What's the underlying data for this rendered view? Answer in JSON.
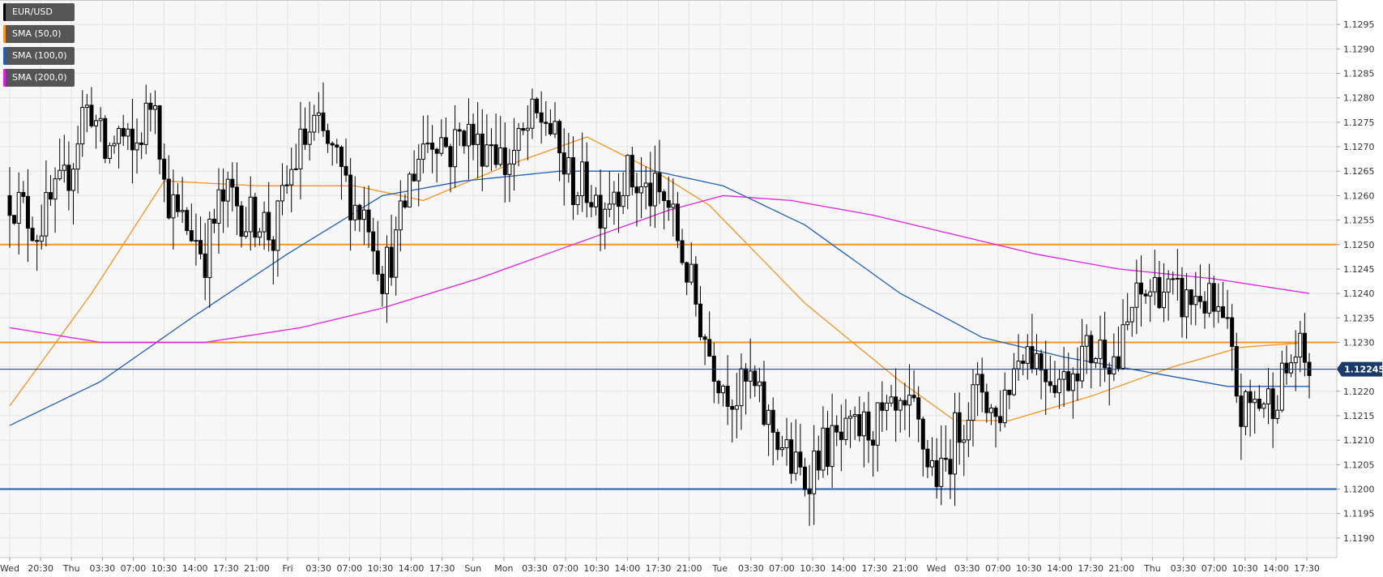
{
  "chart_data": {
    "type": "candlestick",
    "symbol": "EUR/USD",
    "current_price": 1.12245,
    "current_price_label": "1.12245",
    "ylim": [
      1.1186,
      1.13
    ],
    "y_ticks": [
      "1.1190",
      "1.1195",
      "1.1200",
      "1.1205",
      "1.1210",
      "1.1215",
      "1.1220",
      "1.1225",
      "1.1230",
      "1.1235",
      "1.1240",
      "1.1245",
      "1.1250",
      "1.1255",
      "1.1260",
      "1.1265",
      "1.1270",
      "1.1275",
      "1.1280",
      "1.1285",
      "1.1290",
      "1.1295"
    ],
    "x_ticks": [
      "Wed",
      "20:30",
      "Thu",
      "03:30",
      "07:00",
      "10:30",
      "14:00",
      "17:30",
      "21:00",
      "Fri",
      "03:30",
      "07:00",
      "10:30",
      "14:00",
      "17:30",
      "Sun",
      "Mon",
      "03:30",
      "07:00",
      "10:30",
      "14:00",
      "17:30",
      "21:00",
      "Tue",
      "03:30",
      "07:00",
      "10:30",
      "14:00",
      "17:30",
      "21:00",
      "Wed",
      "03:30",
      "07:00",
      "10:30",
      "14:00",
      "17:30",
      "21:00",
      "Thu",
      "03:30",
      "07:00",
      "10:30",
      "14:00",
      "17:30"
    ],
    "grid": true,
    "legend": [
      {
        "label": "EUR/USD",
        "color": "#000000"
      },
      {
        "label": "SMA (50,0)",
        "color": "#f7931e"
      },
      {
        "label": "SMA (100,0)",
        "color": "#1f5fb4"
      },
      {
        "label": "SMA (200,0)",
        "color": "#e020e0"
      }
    ],
    "horizontal_levels": [
      {
        "value": 1.125,
        "color": "#f7931e"
      },
      {
        "value": 1.123,
        "color": "#f7931e"
      },
      {
        "value": 1.12,
        "color": "#1f5fb4"
      }
    ],
    "current_price_line_color": "#1a3a6a",
    "candle_anchors": [
      [
        0,
        1.126
      ],
      [
        3,
        1.1257
      ],
      [
        6,
        1.1253
      ],
      [
        9,
        1.1258
      ],
      [
        12,
        1.1262
      ],
      [
        14,
        1.1268
      ],
      [
        16,
        1.1277
      ],
      [
        18,
        1.1278
      ],
      [
        21,
        1.1268
      ],
      [
        24,
        1.1273
      ],
      [
        27,
        1.1268
      ],
      [
        30,
        1.1276
      ],
      [
        32,
        1.1282
      ],
      [
        34,
        1.1262
      ],
      [
        37,
        1.1255
      ],
      [
        40,
        1.1253
      ],
      [
        43,
        1.1248
      ],
      [
        46,
        1.1258
      ],
      [
        49,
        1.126
      ],
      [
        52,
        1.1255
      ],
      [
        55,
        1.1256
      ],
      [
        58,
        1.1251
      ],
      [
        61,
        1.1262
      ],
      [
        64,
        1.127
      ],
      [
        67,
        1.1274
      ],
      [
        70,
        1.127
      ],
      [
        73,
        1.1264
      ],
      [
        76,
        1.1258
      ],
      [
        79,
        1.1256
      ],
      [
        82,
        1.1244
      ],
      [
        85,
        1.125
      ],
      [
        88,
        1.1263
      ],
      [
        91,
        1.1271
      ],
      [
        94,
        1.1273
      ],
      [
        97,
        1.1269
      ],
      [
        100,
        1.1274
      ],
      [
        103,
        1.127
      ],
      [
        106,
        1.1272
      ],
      [
        109,
        1.1266
      ],
      [
        112,
        1.127
      ],
      [
        115,
        1.1275
      ],
      [
        118,
        1.1276
      ],
      [
        121,
        1.1268
      ],
      [
        124,
        1.1262
      ],
      [
        127,
        1.1262
      ],
      [
        130,
        1.1258
      ],
      [
        133,
        1.1262
      ],
      [
        136,
        1.1264
      ],
      [
        139,
        1.1261
      ],
      [
        142,
        1.126
      ],
      [
        145,
        1.1258
      ],
      [
        148,
        1.1248
      ],
      [
        151,
        1.1238
      ],
      [
        154,
        1.1228
      ],
      [
        157,
        1.1222
      ],
      [
        160,
        1.1219
      ],
      [
        163,
        1.1222
      ],
      [
        166,
        1.1215
      ],
      [
        169,
        1.1211
      ],
      [
        172,
        1.1205
      ],
      [
        175,
        1.1202
      ],
      [
        178,
        1.1208
      ],
      [
        181,
        1.1209
      ],
      [
        184,
        1.121
      ],
      [
        187,
        1.1212
      ],
      [
        190,
        1.1213
      ],
      [
        193,
        1.1214
      ],
      [
        196,
        1.1214
      ],
      [
        199,
        1.1215
      ],
      [
        202,
        1.1206
      ],
      [
        205,
        1.1202
      ],
      [
        208,
        1.1211
      ],
      [
        211,
        1.1217
      ],
      [
        214,
        1.1221
      ],
      [
        217,
        1.1214
      ],
      [
        220,
        1.1222
      ],
      [
        223,
        1.123
      ],
      [
        226,
        1.1227
      ],
      [
        229,
        1.1224
      ],
      [
        232,
        1.1222
      ],
      [
        235,
        1.1227
      ],
      [
        238,
        1.1228
      ],
      [
        241,
        1.1229
      ],
      [
        244,
        1.1226
      ],
      [
        247,
        1.1237
      ],
      [
        250,
        1.124
      ],
      [
        253,
        1.1242
      ],
      [
        256,
        1.1239
      ],
      [
        259,
        1.1238
      ],
      [
        262,
        1.124
      ],
      [
        265,
        1.1236
      ],
      [
        268,
        1.1231
      ],
      [
        271,
        1.1215
      ],
      [
        274,
        1.1218
      ],
      [
        277,
        1.1218
      ],
      [
        280,
        1.1222
      ],
      [
        283,
        1.1228
      ],
      [
        286,
        1.1225
      ]
    ],
    "sma_50": [
      [
        0,
        1.1217
      ],
      [
        18,
        1.124
      ],
      [
        34,
        1.1263
      ],
      [
        55,
        1.1262
      ],
      [
        76,
        1.1262
      ],
      [
        91,
        1.1259
      ],
      [
        109,
        1.1266
      ],
      [
        127,
        1.1272
      ],
      [
        142,
        1.1265
      ],
      [
        154,
        1.1258
      ],
      [
        175,
        1.1238
      ],
      [
        196,
        1.1222
      ],
      [
        208,
        1.1214
      ],
      [
        220,
        1.1214
      ],
      [
        238,
        1.1219
      ],
      [
        256,
        1.1225
      ],
      [
        271,
        1.1229
      ],
      [
        286,
        1.123
      ]
    ],
    "sma_100": [
      [
        0,
        1.1213
      ],
      [
        20,
        1.1222
      ],
      [
        40,
        1.1235
      ],
      [
        61,
        1.1248
      ],
      [
        82,
        1.126
      ],
      [
        100,
        1.1263
      ],
      [
        121,
        1.1265
      ],
      [
        142,
        1.1265
      ],
      [
        157,
        1.1262
      ],
      [
        175,
        1.1254
      ],
      [
        196,
        1.124
      ],
      [
        214,
        1.1231
      ],
      [
        232,
        1.1227
      ],
      [
        250,
        1.1224
      ],
      [
        268,
        1.1221
      ],
      [
        286,
        1.1221
      ]
    ],
    "sma_200": [
      [
        0,
        1.1233
      ],
      [
        20,
        1.123
      ],
      [
        43,
        1.123
      ],
      [
        64,
        1.1233
      ],
      [
        82,
        1.1237
      ],
      [
        103,
        1.1243
      ],
      [
        124,
        1.125
      ],
      [
        145,
        1.1257
      ],
      [
        157,
        1.126
      ],
      [
        172,
        1.1259
      ],
      [
        190,
        1.1256
      ],
      [
        208,
        1.1252
      ],
      [
        226,
        1.1248
      ],
      [
        244,
        1.1245
      ],
      [
        265,
        1.1243
      ],
      [
        286,
        1.124
      ]
    ]
  }
}
